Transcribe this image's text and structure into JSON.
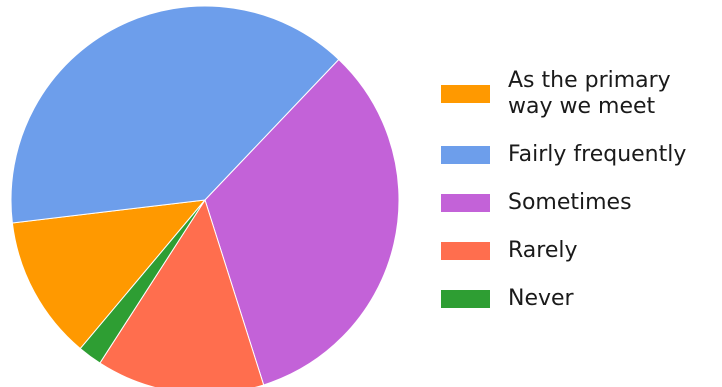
{
  "chart_data": {
    "type": "pie",
    "title": "",
    "slices": [
      {
        "label": "As the primary way we meet",
        "label_lines": [
          "As the primary",
          "way we meet"
        ],
        "value": 12,
        "color": "#FF9900"
      },
      {
        "label": "Fairly frequently",
        "label_lines": [
          "Fairly frequently"
        ],
        "value": 39,
        "color": "#6D9EEB"
      },
      {
        "label": "Sometimes",
        "label_lines": [
          "Sometimes"
        ],
        "value": 33,
        "color": "#C362D8"
      },
      {
        "label": "Rarely",
        "label_lines": [
          "Rarely"
        ],
        "value": 14,
        "color": "#FF6E4E"
      },
      {
        "label": "Never",
        "label_lines": [
          "Never"
        ],
        "value": 2,
        "color": "#2E9E33"
      }
    ],
    "legend_position": "right",
    "start_angle_deg": 130,
    "direction": "counterclockwise"
  }
}
